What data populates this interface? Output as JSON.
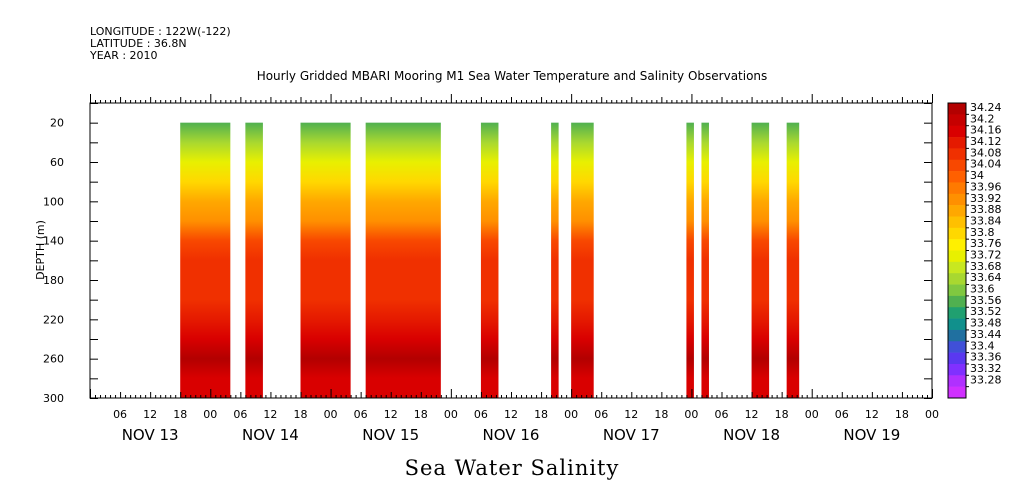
{
  "header": {
    "longitude": "LONGITUDE : 122W(-122)",
    "latitude": "LATITUDE : 36.8N",
    "year": "YEAR : 2010"
  },
  "title": "Hourly Gridded MBARI Mooring M1 Sea Water Temperature and Salinity Observations",
  "footer_title": "Sea Water Salinity",
  "chart_data": {
    "type": "heatmap",
    "title": "Hourly Gridded MBARI Mooring M1 Sea Water Temperature and Salinity Observations",
    "ylabel": "DEPTH (m)",
    "xlabel": "",
    "x_range_hours": [
      0,
      168
    ],
    "y_range_depth_m": [
      0,
      300
    ],
    "y_inverted": true,
    "y_ticks": [
      20,
      60,
      100,
      140,
      180,
      220,
      260,
      300
    ],
    "x_hour_tick_labels": [
      "06",
      "12",
      "18",
      "00",
      "06",
      "12",
      "18",
      "00",
      "06",
      "12",
      "18",
      "00",
      "06",
      "12",
      "18",
      "00",
      "06",
      "12",
      "18",
      "00",
      "06",
      "12",
      "18",
      "00",
      "06",
      "12",
      "18",
      "00"
    ],
    "day_labels": [
      "NOV 13",
      "NOV 14",
      "NOV 15",
      "NOV 16",
      "NOV 17",
      "NOV 18",
      "NOV 19"
    ],
    "colorbar_levels": [
      "34.24",
      "34.2",
      "34.16",
      "34.12",
      "34.08",
      "34.04",
      "34",
      "33.96",
      "33.92",
      "33.88",
      "33.84",
      "33.8",
      "33.76",
      "33.72",
      "33.68",
      "33.64",
      "33.6",
      "33.56",
      "33.52",
      "33.48",
      "33.44",
      "33.4",
      "33.36",
      "33.32",
      "33.28"
    ],
    "colorbar_colors": [
      "#b30000",
      "#c60000",
      "#d90000",
      "#e51a00",
      "#f03000",
      "#f84800",
      "#ff6000",
      "#ff7a00",
      "#ff9000",
      "#ffa800",
      "#ffc000",
      "#ffd800",
      "#fff000",
      "#e8f000",
      "#c8e820",
      "#a8d830",
      "#80c840",
      "#50b050",
      "#20a070",
      "#10908c",
      "#2070a0",
      "#4050d8",
      "#5a38f0",
      "#8030ff",
      "#b030ff",
      "#d030ff"
    ],
    "depth_profile_m": [
      20,
      40,
      60,
      80,
      100,
      120,
      140,
      160,
      180,
      200,
      220,
      240,
      260,
      280,
      300
    ],
    "salinity_profile": [
      33.55,
      33.62,
      33.72,
      33.78,
      33.86,
      33.92,
      34.02,
      34.06,
      34.06,
      34.08,
      34.12,
      34.16,
      34.22,
      34.16,
      34.14
    ],
    "data_segments_hours": [
      {
        "start": 18,
        "end": 28
      },
      {
        "start": 31,
        "end": 34.5
      },
      {
        "start": 42,
        "end": 52
      },
      {
        "start": 55,
        "end": 70
      },
      {
        "start": 78,
        "end": 81.5
      },
      {
        "start": 92,
        "end": 93.5
      },
      {
        "start": 96,
        "end": 100.5
      },
      {
        "start": 119,
        "end": 120.5
      },
      {
        "start": 122,
        "end": 123.5
      },
      {
        "start": 132,
        "end": 135.5
      },
      {
        "start": 139,
        "end": 141.5
      }
    ]
  }
}
